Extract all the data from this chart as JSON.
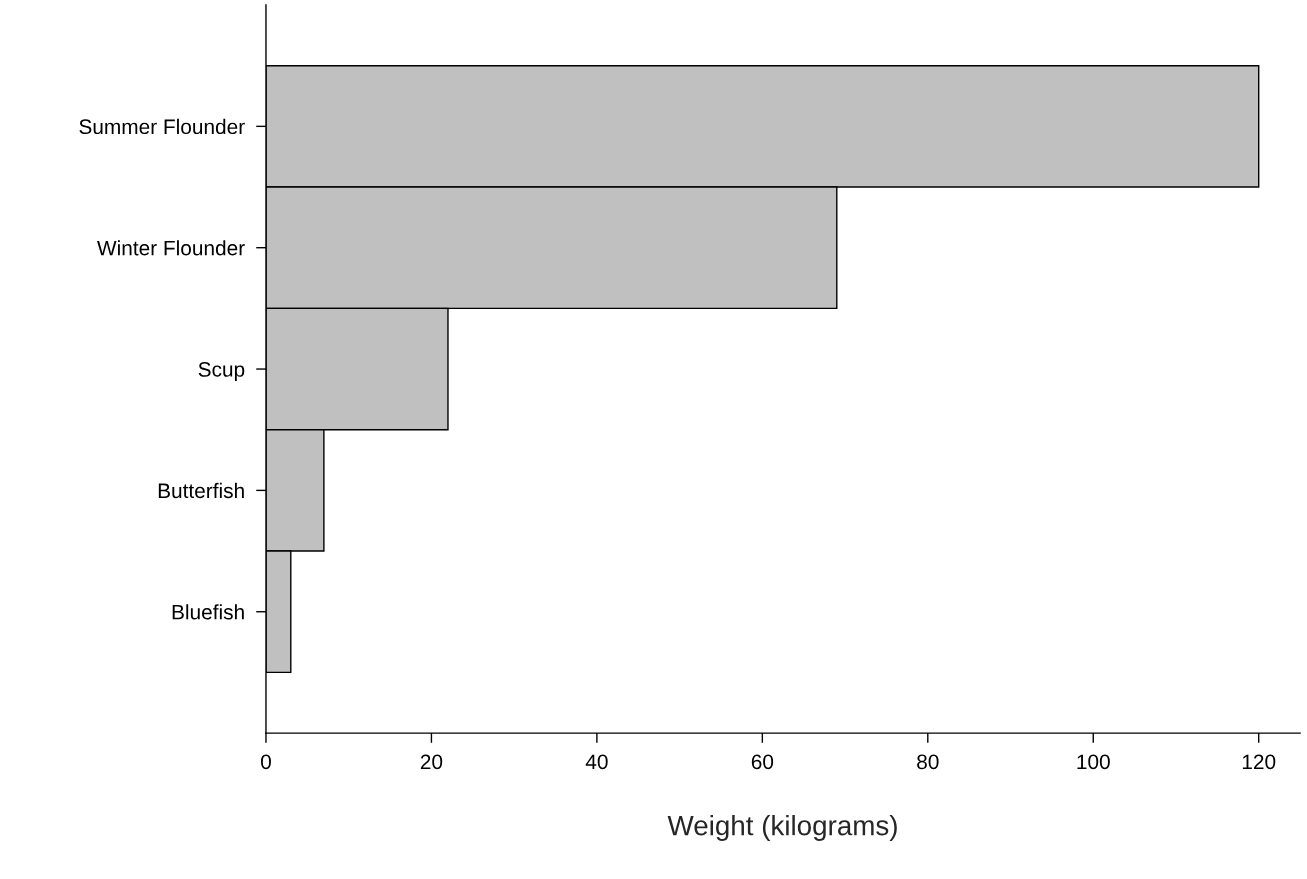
{
  "chart_data": {
    "type": "bar",
    "orientation": "horizontal",
    "xlabel": "Weight (kilograms)",
    "categories": [
      "Summer Flounder",
      "Winter Flounder",
      "Scup",
      "Butterfish",
      "Bluefish"
    ],
    "values": [
      120,
      69,
      22,
      7,
      3
    ],
    "color": "#c0c0c0",
    "xlim": [
      0,
      125
    ],
    "xticks": [
      0,
      20,
      40,
      60,
      80,
      100,
      120
    ]
  }
}
